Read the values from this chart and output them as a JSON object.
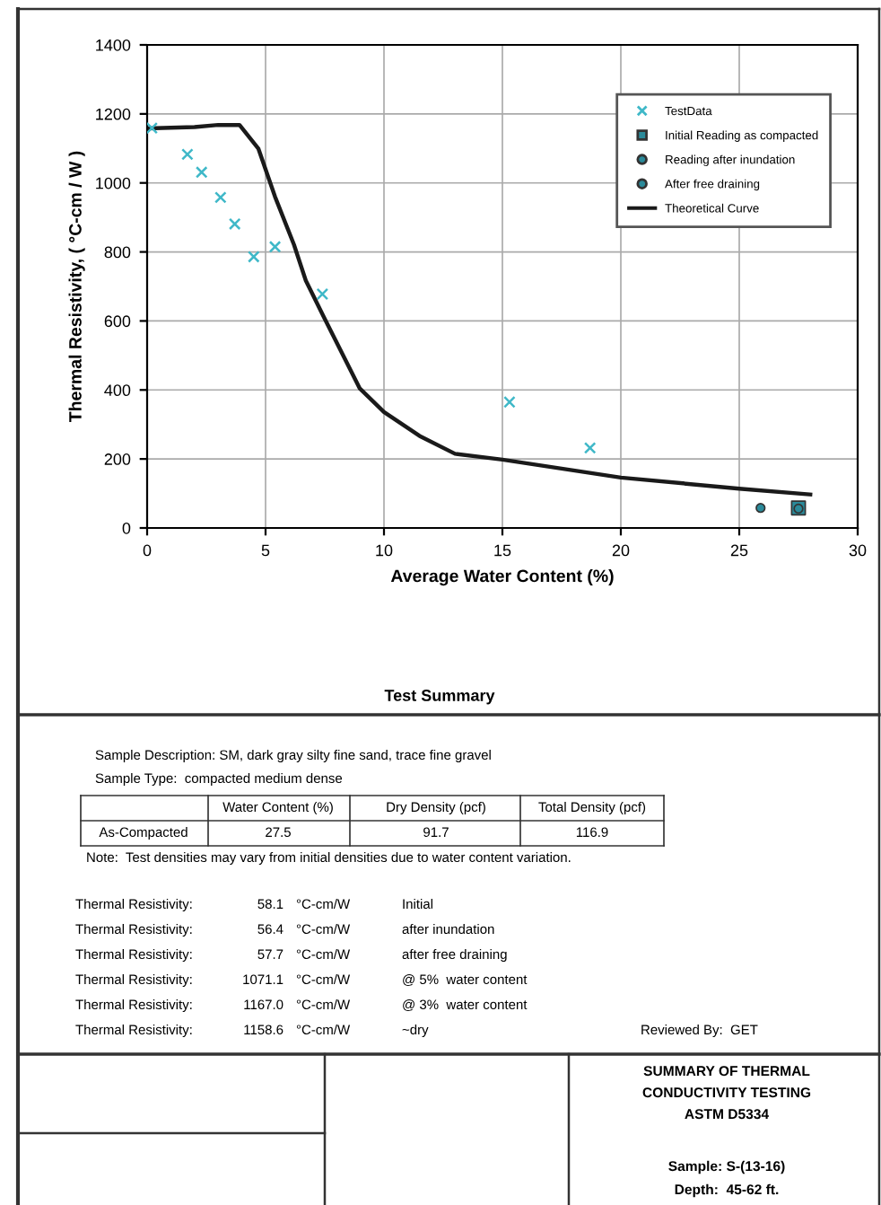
{
  "chart_data": {
    "type": "scatter",
    "xlabel": "Average Water Content (%)",
    "ylabel": "Thermal Resistivity, ( °C-cm / W )",
    "xlim": [
      0,
      30
    ],
    "xticks": [
      0,
      5,
      10,
      15,
      20,
      25,
      30
    ],
    "ylim": [
      0,
      1400
    ],
    "yticks": [
      0,
      200,
      400,
      600,
      800,
      1000,
      1200,
      1400
    ],
    "grid": true,
    "legend": "top right",
    "series": [
      {
        "name": "TestData",
        "marker": "cross",
        "color": "#3fb8c8",
        "x": [
          0.2,
          1.7,
          2.3,
          3.1,
          3.7,
          4.5,
          5.4,
          7.4,
          15.3,
          18.7
        ],
        "values": [
          1159,
          1083,
          1031,
          958,
          881,
          786,
          815,
          678,
          365,
          232
        ]
      },
      {
        "name": "Initial Reading as compacted",
        "marker": "square",
        "color": "#2a8a9a",
        "x": [
          27.5
        ],
        "values": [
          58
        ]
      },
      {
        "name": "Reading after inundation",
        "marker": "circle",
        "color": "#2a8a9a",
        "x": [
          27.5
        ],
        "values": [
          56
        ]
      },
      {
        "name": "After free draining",
        "marker": "circle",
        "color": "#2a8a9a",
        "x": [
          25.9
        ],
        "values": [
          58
        ]
      },
      {
        "name": "Theoretical Curve",
        "type": "line",
        "marker": "none",
        "color": "#1a1a1a",
        "x": [
          0,
          1,
          2,
          3,
          3.9,
          4.7,
          5.4,
          6.2,
          6.7,
          7.45,
          8.97,
          10,
          11.5,
          13,
          15,
          20,
          25,
          28
        ],
        "values": [
          1158,
          1160,
          1162,
          1168,
          1168,
          1099,
          960,
          821,
          717,
          613,
          405,
          336,
          267,
          215,
          198,
          146,
          114,
          97
        ]
      }
    ],
    "annotations": [
      "Test Summary",
      "Sample Description: SM, dark gray silty fine sand, trace fine gravel",
      "Sample Type:  compacted medium dense",
      "Water Content (%)",
      "Dry Density (pcf)",
      "Total Density (pcf)",
      "As-Compacted",
      "27.5",
      "91.7",
      "116.9",
      "Note:  Test densities may vary from initial densities due to water content variation.",
      "Thermal Resistivity:",
      "58.1",
      "°C-cm/W",
      "Initial",
      "Thermal Resistivity:",
      "56.4",
      "°C-cm/W",
      "after inundation",
      "Thermal Resistivity:",
      "57.7",
      "°C-cm/W",
      "after free draining",
      "Thermal Resistivity:",
      "1071.1",
      "°C-cm/W",
      "@ 5%  water content",
      "Thermal Resistivity:",
      "1167.0",
      "°C-cm/W",
      "@ 3%  water content",
      "Thermal Resistivity:",
      "1158.6",
      "°C-cm/W",
      "~dry",
      "Reviewed By:  GET",
      "SUMMARY OF THERMAL",
      "CONDUCTIVITY TESTING",
      "ASTM D5334",
      "Sample: S-(13-16)",
      "Depth:  45-62 ft."
    ]
  }
}
